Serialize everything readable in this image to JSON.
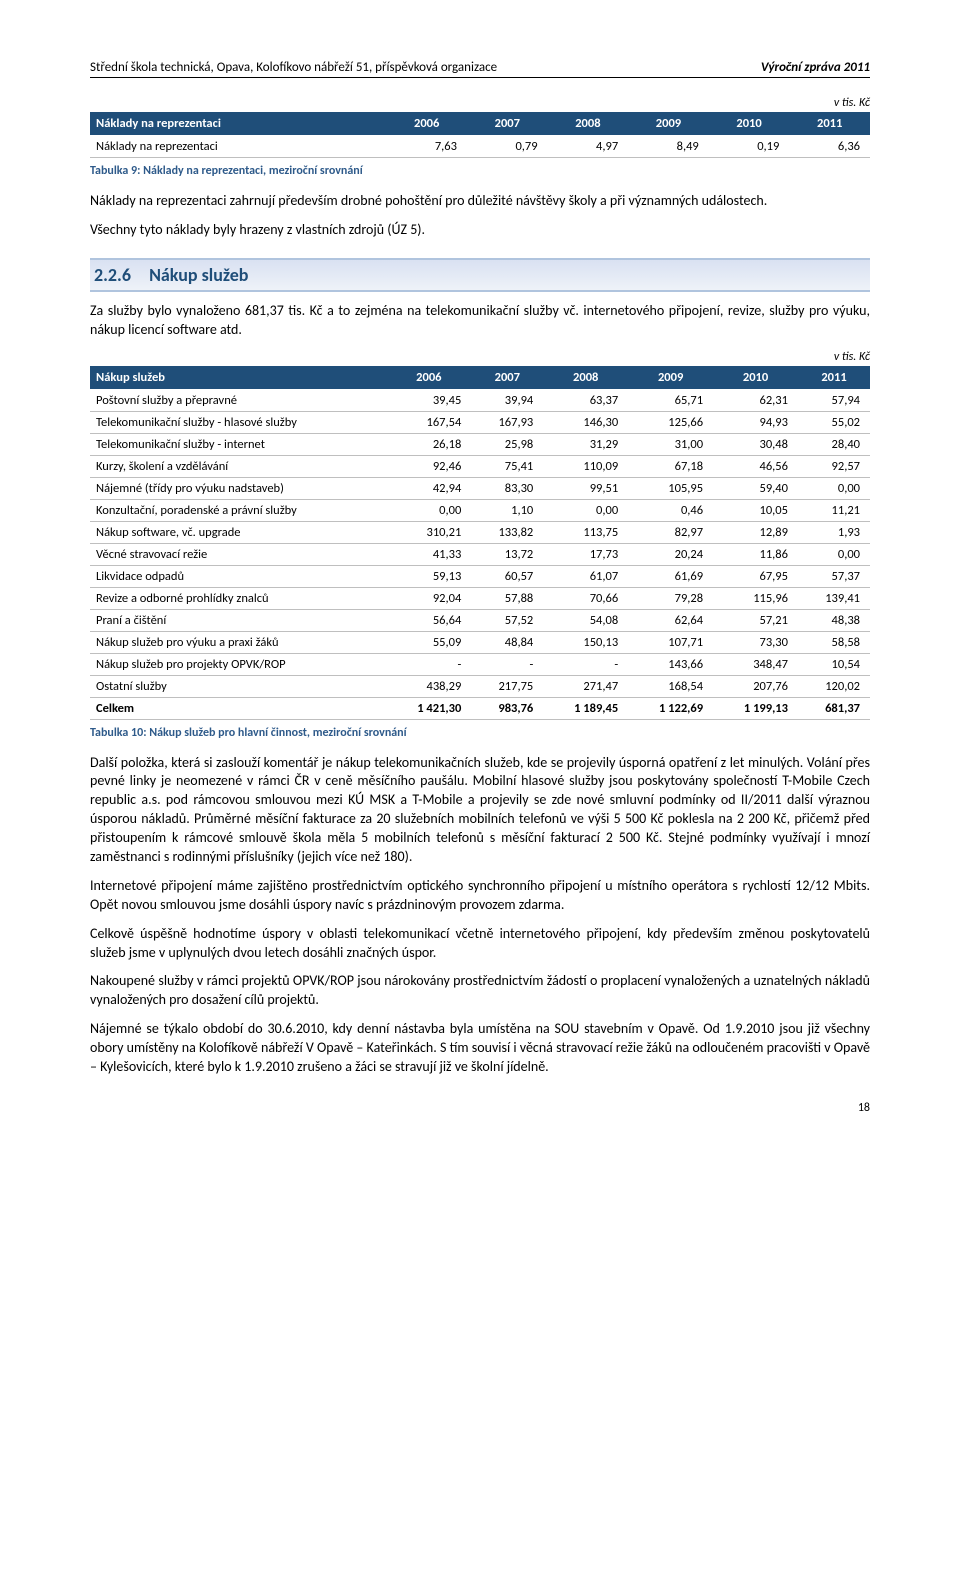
{
  "header": {
    "left": "Střední škola technická, Opava, Kolofíkovo nábřeží 51, příspěvková organizace",
    "right": "Výroční zpráva 2011"
  },
  "unit_label": "v tis. Kč",
  "table1": {
    "header": "Náklady na reprezentaci",
    "years": [
      "2006",
      "2007",
      "2008",
      "2009",
      "2010",
      "2011"
    ],
    "rows": [
      {
        "label": "Náklady na reprezentaci",
        "vals": [
          "7,63",
          "0,79",
          "4,97",
          "8,49",
          "0,19",
          "6,36"
        ]
      }
    ],
    "caption": "Tabulka 9: Náklady na reprezentaci, meziroční srovnání"
  },
  "para1": "Náklady na reprezentaci zahrnují především drobné pohoštění pro důležité návštěvy školy a při významných událostech.",
  "para2": "Všechny tyto náklady byly hrazeny z vlastních zdrojů (ÚZ 5).",
  "section": {
    "num": "2.2.6",
    "title": "Nákup služeb"
  },
  "para3": "Za služby bylo vynaloženo 681,37 tis. Kč a to zejména na telekomunikační služby vč. internetového připojení, revize, služby pro výuku, nákup licencí software atd.",
  "table2": {
    "header": "Nákup služeb",
    "years": [
      "2006",
      "2007",
      "2008",
      "2009",
      "2010",
      "2011"
    ],
    "rows": [
      {
        "label": "Poštovní služby a přepravné",
        "vals": [
          "39,45",
          "39,94",
          "63,37",
          "65,71",
          "62,31",
          "57,94"
        ]
      },
      {
        "label": "Telekomunikační služby - hlasové služby",
        "vals": [
          "167,54",
          "167,93",
          "146,30",
          "125,66",
          "94,93",
          "55,02"
        ]
      },
      {
        "label": "Telekomunikační služby - internet",
        "vals": [
          "26,18",
          "25,98",
          "31,29",
          "31,00",
          "30,48",
          "28,40"
        ]
      },
      {
        "label": "Kurzy, školení a vzdělávání",
        "vals": [
          "92,46",
          "75,41",
          "110,09",
          "67,18",
          "46,56",
          "92,57"
        ]
      },
      {
        "label": "Nájemné (třídy pro výuku nadstaveb)",
        "vals": [
          "42,94",
          "83,30",
          "99,51",
          "105,95",
          "59,40",
          "0,00"
        ]
      },
      {
        "label": "Konzultační, poradenské a právní služby",
        "vals": [
          "0,00",
          "1,10",
          "0,00",
          "0,46",
          "10,05",
          "11,21"
        ]
      },
      {
        "label": "Nákup software, vč. upgrade",
        "vals": [
          "310,21",
          "133,82",
          "113,75",
          "82,97",
          "12,89",
          "1,93"
        ]
      },
      {
        "label": "Věcné stravovací režie",
        "vals": [
          "41,33",
          "13,72",
          "17,73",
          "20,24",
          "11,86",
          "0,00"
        ]
      },
      {
        "label": "Likvidace odpadů",
        "vals": [
          "59,13",
          "60,57",
          "61,07",
          "61,69",
          "67,95",
          "57,37"
        ]
      },
      {
        "label": "Revize a odborné prohlídky znalců",
        "vals": [
          "92,04",
          "57,88",
          "70,66",
          "79,28",
          "115,96",
          "139,41"
        ]
      },
      {
        "label": "Praní a čištění",
        "vals": [
          "56,64",
          "57,52",
          "54,08",
          "62,64",
          "57,21",
          "48,38"
        ]
      },
      {
        "label": "Nákup služeb pro výuku a praxi žáků",
        "vals": [
          "55,09",
          "48,84",
          "150,13",
          "107,71",
          "73,30",
          "58,58"
        ]
      },
      {
        "label": "Nákup služeb pro projekty OPVK/ROP",
        "vals": [
          "-",
          "-",
          "-",
          "143,66",
          "348,47",
          "10,54"
        ]
      },
      {
        "label": "Ostatní služby",
        "vals": [
          "438,29",
          "217,75",
          "271,47",
          "168,54",
          "207,76",
          "120,02"
        ]
      },
      {
        "label": "Celkem",
        "vals": [
          "1 421,30",
          "983,76",
          "1 189,45",
          "1 122,69",
          "1 199,13",
          "681,37"
        ],
        "bold": true
      }
    ],
    "caption": "Tabulka 10: Nákup služeb pro hlavní činnost, meziroční srovnání"
  },
  "para4": "Další položka, která si zaslouží komentář je nákup telekomunikačních služeb, kde se projevily úsporná opatření z let minulých. Volání přes pevné linky je neomezené v rámci ČR v ceně měsíčního paušálu. Mobilní hlasové služby jsou poskytovány společností T-Mobile Czech republic a.s. pod rámcovou smlouvou mezi KÚ MSK a T-Mobile a projevily se zde nové smluvní podmínky od II/2011 další výraznou úsporou nákladů. Průměrné měsíční fakturace za 20 služebních mobilních telefonů ve výši 5 500 Kč poklesla na 2 200 Kč, přičemž před přistoupením k rámcové smlouvě škola měla 5 mobilních telefonů s měsíční fakturací 2 500 Kč. Stejné podmínky využívají i mnozí zaměstnanci s rodinnými příslušníky (jejich více než 180).",
  "para5": "Internetové připojení máme zajištěno prostřednictvím optického synchronního připojení u místního operátora s rychlostí 12/12 Mbits. Opět novou smlouvou jsme dosáhli úspory navíc s prázdninovým provozem zdarma.",
  "para6": "Celkově úspěšně hodnotíme úspory v oblasti telekomunikací včetně internetového připojení, kdy především změnou poskytovatelů služeb jsme v uplynulých dvou letech dosáhli značných úspor.",
  "para7": "Nakoupené služby v rámci projektů OPVK/ROP jsou nárokovány prostřednictvím žádostí o proplacení vynaložených a uznatelných nákladů vynaložených pro dosažení cílů projektů.",
  "para8": "Nájemné se týkalo období do 30.6.2010, kdy denní nástavba byla umístěna na SOU stavebním v Opavě. Od 1.9.2010 jsou již všechny obory umístěny na Kolofíkově nábřeží V Opavě – Kateřinkách. S tím souvisí i věcná stravovací režie žáků na odloučeném pracovišti v Opavě – Kylešovicích, které bylo k 1.9.2010 zrušeno a žáci se stravují již ve školní jídelně.",
  "page_number": "18",
  "colors": {
    "th_bg": "#1f4e79",
    "caption_color": "#2e5a8a"
  }
}
